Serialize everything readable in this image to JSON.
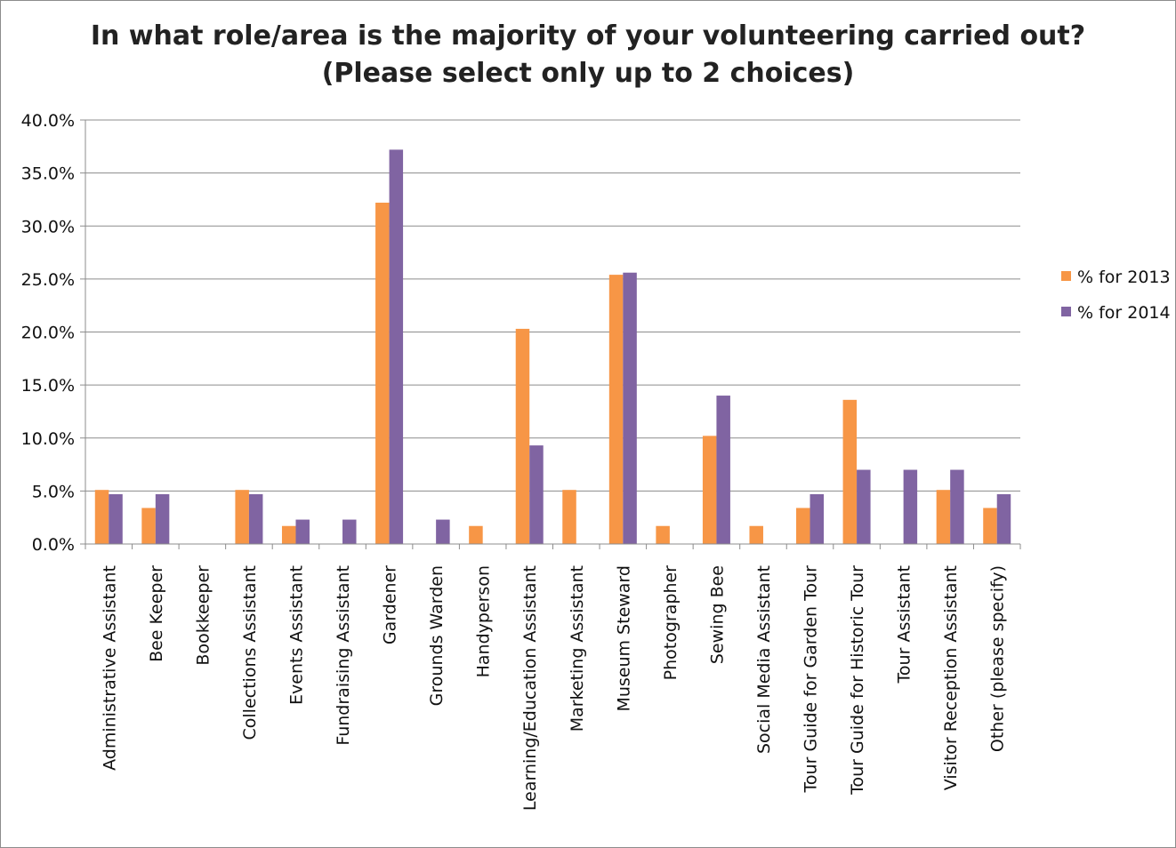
{
  "chart_data": {
    "type": "bar",
    "title": "In what role/area is the majority of your volunteering carried out?",
    "subtitle": "(Please select only up to 2 choices)",
    "categories": [
      "Administrative Assistant",
      "Bee Keeper",
      "Bookkeeper",
      "Collections Assistant",
      "Events Assistant",
      "Fundraising Assistant",
      "Gardener",
      "Grounds Warden",
      "Handyperson",
      "Learning/Education Assistant",
      "Marketing Assistant",
      "Museum Steward",
      "Photographer",
      "Sewing Bee",
      "Social Media Assistant",
      "Tour Guide for Garden Tour",
      "Tour Guide for Historic Tour",
      "Tour Assistant",
      "Visitor Reception Assistant",
      "Other (please specify)"
    ],
    "series": [
      {
        "name": "% for 2013",
        "color": "#F79646",
        "values": [
          5.1,
          3.4,
          0,
          5.1,
          1.7,
          0,
          32.2,
          0,
          1.7,
          20.3,
          5.1,
          25.4,
          1.7,
          10.2,
          1.7,
          3.4,
          13.6,
          0,
          5.1,
          3.4
        ]
      },
      {
        "name": "% for 2014",
        "color": "#8064A2",
        "values": [
          4.7,
          4.7,
          0,
          4.7,
          2.3,
          2.3,
          37.2,
          2.3,
          0,
          9.3,
          0,
          25.6,
          0,
          14.0,
          0,
          4.7,
          7.0,
          7.0,
          7.0,
          4.7
        ]
      }
    ],
    "yticks": [
      "0.0%",
      "5.0%",
      "10.0%",
      "15.0%",
      "20.0%",
      "25.0%",
      "30.0%",
      "35.0%",
      "40.0%"
    ],
    "ylim": [
      0,
      40
    ],
    "grid": true,
    "legend": "right"
  }
}
